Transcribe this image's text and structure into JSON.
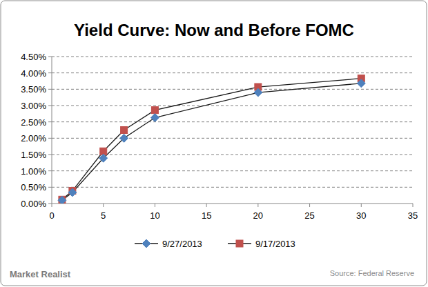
{
  "chart_data": {
    "type": "line",
    "title": "Yield Curve: Now and Before FOMC",
    "x": [
      1,
      2,
      5,
      7,
      10,
      20,
      30
    ],
    "series": [
      {
        "name": "9/27/2013",
        "color": "#4f81bd",
        "marker": "diamond",
        "line_style": "solid",
        "values": [
          0.1,
          0.34,
          1.39,
          2.0,
          2.63,
          3.4,
          3.68
        ]
      },
      {
        "name": "9/17/2013",
        "color": "#c0504d",
        "marker": "square",
        "line_style": "solid",
        "values": [
          0.12,
          0.39,
          1.6,
          2.25,
          2.86,
          3.57,
          3.83
        ]
      }
    ],
    "xlim": [
      0,
      35
    ],
    "xticks": [
      0,
      5,
      10,
      15,
      20,
      25,
      30,
      35
    ],
    "ylim": [
      0,
      4.5
    ],
    "yticks": [
      {
        "value": 0,
        "label": "0.00%"
      },
      {
        "value": 0.5,
        "label": "0.50%"
      },
      {
        "value": 1,
        "label": "1.00%"
      },
      {
        "value": 1.5,
        "label": "1.50%"
      },
      {
        "value": 2,
        "label": "2.00%"
      },
      {
        "value": 2.5,
        "label": "2.50%"
      },
      {
        "value": 3,
        "label": "3.00%"
      },
      {
        "value": 3.5,
        "label": "3.50%"
      },
      {
        "value": 4,
        "label": "4.00%"
      },
      {
        "value": 4.5,
        "label": "4.50%"
      }
    ],
    "grid": true,
    "legend": "bottom",
    "source": "Source: Federal Reserve",
    "logo": "Market Realist"
  }
}
